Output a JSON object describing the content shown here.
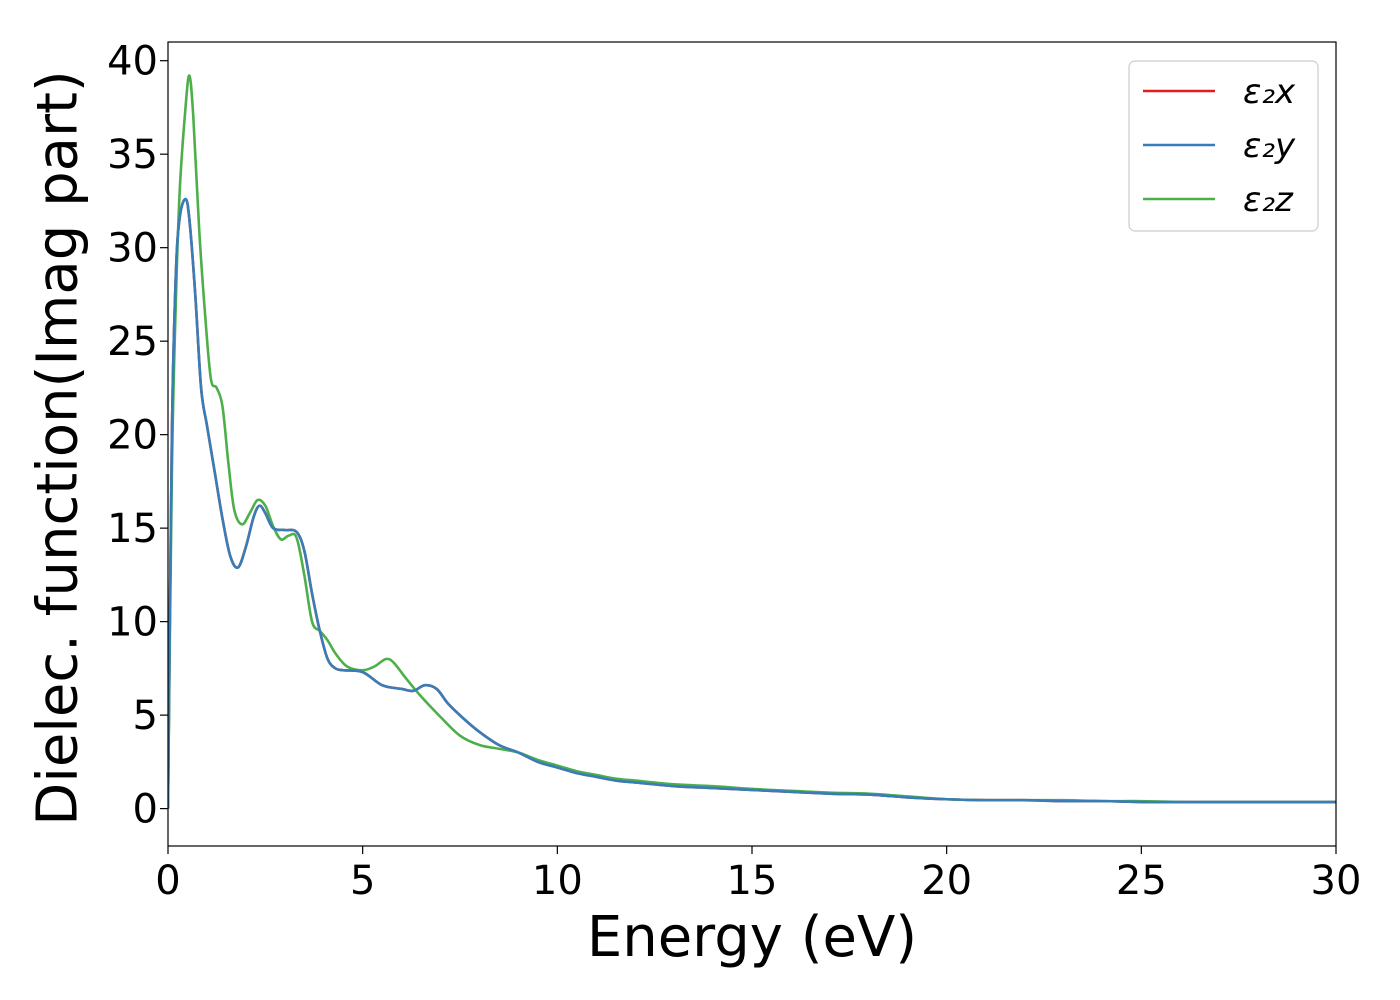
{
  "chart_data": {
    "type": "line",
    "title": "",
    "xlabel": "Energy (eV)",
    "ylabel": "Dielec. function(Imag part)",
    "xlim": [
      0,
      30
    ],
    "ylim": [
      -2,
      41
    ],
    "xticks": [
      0,
      5,
      10,
      15,
      20,
      25,
      30
    ],
    "xtick_labels": [
      "0",
      "5",
      "10",
      "15",
      "20",
      "25",
      "30"
    ],
    "yticks": [
      0,
      5,
      10,
      15,
      20,
      25,
      30,
      35,
      40
    ],
    "ytick_labels": [
      "0",
      "5",
      "10",
      "15",
      "20",
      "25",
      "30",
      "35",
      "40"
    ],
    "grid": false,
    "legend_position": "top-right",
    "series": [
      {
        "name": "ε₂x",
        "color": "#e41a1c",
        "x": [
          0,
          0.1,
          0.2,
          0.3,
          0.45,
          0.55,
          0.7,
          0.85,
          1.0,
          1.2,
          1.4,
          1.6,
          1.8,
          2.0,
          2.2,
          2.35,
          2.5,
          2.7,
          3.0,
          3.3,
          3.5,
          3.7,
          3.9,
          4.1,
          4.3,
          4.5,
          5.0,
          5.5,
          6.0,
          6.3,
          6.6,
          6.9,
          7.2,
          7.6,
          8.0,
          8.5,
          9.0,
          9.5,
          10.0,
          10.5,
          11.0,
          11.5,
          12.0,
          13.0,
          14.0,
          15.0,
          16.0,
          17.0,
          18.0,
          19.0,
          20.0,
          21.0,
          22.0,
          23.0,
          24.0,
          25.0,
          26.0,
          27.0,
          28.0,
          29.0,
          30.0
        ],
        "y": [
          0,
          20.0,
          28.5,
          31.6,
          32.6,
          31.5,
          27.5,
          22.5,
          20.5,
          18.0,
          15.5,
          13.5,
          12.9,
          14.0,
          15.6,
          16.2,
          15.8,
          15.0,
          14.9,
          14.8,
          13.8,
          11.5,
          9.5,
          8.0,
          7.5,
          7.4,
          7.3,
          6.6,
          6.4,
          6.3,
          6.6,
          6.4,
          5.6,
          4.8,
          4.1,
          3.4,
          3.0,
          2.5,
          2.2,
          1.9,
          1.7,
          1.5,
          1.4,
          1.2,
          1.1,
          1.0,
          0.9,
          0.8,
          0.75,
          0.6,
          0.5,
          0.45,
          0.45,
          0.4,
          0.4,
          0.35,
          0.35,
          0.35,
          0.35,
          0.35,
          0.35
        ]
      },
      {
        "name": "ε₂y",
        "color": "#377eb8",
        "x": [
          0,
          0.1,
          0.2,
          0.3,
          0.45,
          0.55,
          0.7,
          0.85,
          1.0,
          1.2,
          1.4,
          1.6,
          1.8,
          2.0,
          2.2,
          2.35,
          2.5,
          2.7,
          3.0,
          3.3,
          3.5,
          3.7,
          3.9,
          4.1,
          4.3,
          4.5,
          5.0,
          5.5,
          6.0,
          6.3,
          6.6,
          6.9,
          7.2,
          7.6,
          8.0,
          8.5,
          9.0,
          9.5,
          10.0,
          10.5,
          11.0,
          11.5,
          12.0,
          13.0,
          14.0,
          15.0,
          16.0,
          17.0,
          18.0,
          19.0,
          20.0,
          21.0,
          22.0,
          23.0,
          24.0,
          25.0,
          26.0,
          27.0,
          28.0,
          29.0,
          30.0
        ],
        "y": [
          0,
          20.0,
          28.5,
          31.6,
          32.6,
          31.5,
          27.5,
          22.5,
          20.5,
          18.0,
          15.5,
          13.5,
          12.9,
          14.0,
          15.6,
          16.2,
          15.8,
          15.0,
          14.9,
          14.8,
          13.8,
          11.5,
          9.5,
          8.0,
          7.5,
          7.4,
          7.3,
          6.6,
          6.4,
          6.3,
          6.6,
          6.4,
          5.6,
          4.8,
          4.1,
          3.4,
          3.0,
          2.5,
          2.2,
          1.9,
          1.7,
          1.5,
          1.4,
          1.2,
          1.1,
          1.0,
          0.9,
          0.8,
          0.75,
          0.6,
          0.5,
          0.45,
          0.45,
          0.4,
          0.4,
          0.35,
          0.35,
          0.35,
          0.35,
          0.35,
          0.35
        ]
      },
      {
        "name": "ε₂z",
        "color": "#4daf4a",
        "x": [
          0,
          0.1,
          0.2,
          0.3,
          0.45,
          0.55,
          0.65,
          0.8,
          0.95,
          1.1,
          1.25,
          1.4,
          1.55,
          1.7,
          1.9,
          2.1,
          2.3,
          2.5,
          2.7,
          2.9,
          3.1,
          3.3,
          3.5,
          3.7,
          3.9,
          4.1,
          4.3,
          4.6,
          5.0,
          5.3,
          5.6,
          5.8,
          6.1,
          6.5,
          7.0,
          7.5,
          8.0,
          8.5,
          9.0,
          9.5,
          10.0,
          10.5,
          11.0,
          11.5,
          12.0,
          13.0,
          14.0,
          15.0,
          16.0,
          17.0,
          18.0,
          19.0,
          20.0,
          21.0,
          22.0,
          23.0,
          24.0,
          25.0,
          26.0,
          27.0,
          28.0,
          29.0,
          30.0
        ],
        "y": [
          0,
          18.0,
          27.0,
          33.0,
          37.5,
          39.2,
          37.0,
          31.0,
          26.5,
          23.0,
          22.5,
          21.5,
          18.5,
          16.0,
          15.2,
          15.8,
          16.5,
          16.2,
          15.1,
          14.4,
          14.6,
          14.5,
          12.5,
          10.0,
          9.5,
          9.0,
          8.3,
          7.6,
          7.4,
          7.6,
          8.0,
          7.8,
          7.0,
          6.0,
          4.9,
          3.9,
          3.4,
          3.2,
          3.0,
          2.6,
          2.3,
          2.0,
          1.8,
          1.6,
          1.5,
          1.3,
          1.2,
          1.05,
          0.95,
          0.85,
          0.8,
          0.65,
          0.5,
          0.45,
          0.45,
          0.45,
          0.4,
          0.4,
          0.35,
          0.35,
          0.35,
          0.35,
          0.35
        ]
      }
    ]
  }
}
